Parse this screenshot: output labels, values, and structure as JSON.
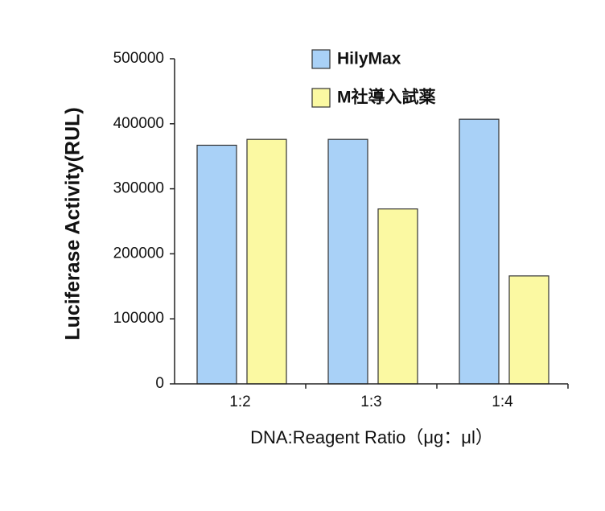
{
  "chart_data": {
    "type": "bar",
    "x_label": "DNA:Reagent Ratio（μg：μl）",
    "y_label": "Luciferase Activity(RUL)",
    "categories": [
      "1:2",
      "1:3",
      "1:4"
    ],
    "series": [
      {
        "name": "HilyMax",
        "color": "#a9d1f7",
        "values": [
          367000,
          376000,
          407000
        ]
      },
      {
        "name": "M社導入試薬",
        "color": "#fbf9a2",
        "values": [
          376000,
          269000,
          166000
        ]
      }
    ],
    "ylim": [
      0,
      500000
    ],
    "yticks": [
      0,
      100000,
      200000,
      300000,
      400000,
      500000
    ]
  }
}
